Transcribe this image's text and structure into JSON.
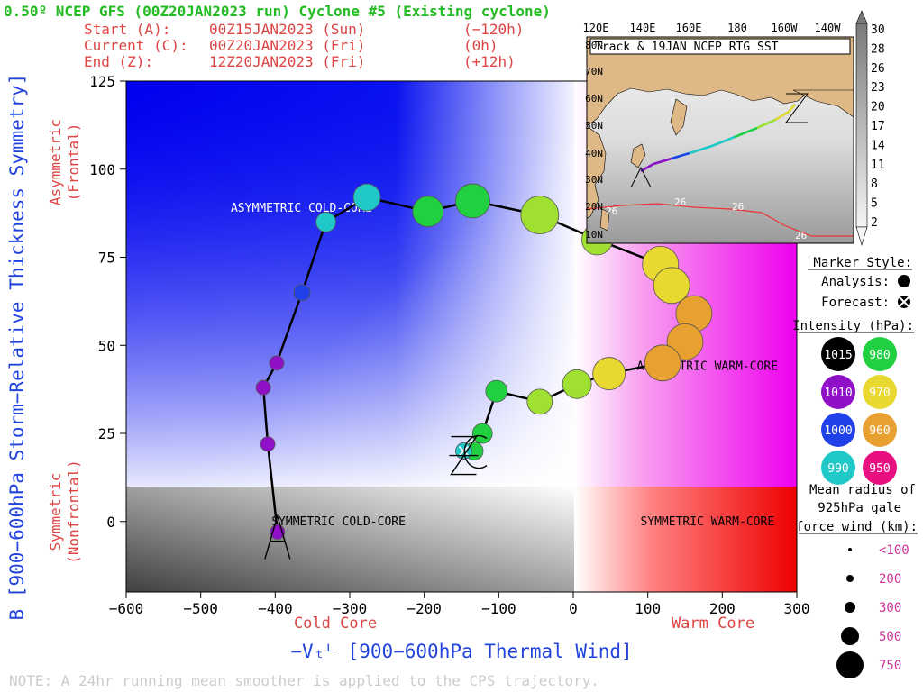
{
  "header": {
    "title": "0.50º NCEP GFS (00Z20JAN2023 run) Cyclone #5 (Existing cyclone)",
    "start_label": "Start (A):",
    "start_value": "00Z15JAN2023 (Sun)",
    "start_offset": "(−120h)",
    "current_label": "Current (C):",
    "current_value": "00Z20JAN2023 (Fri)",
    "current_offset": "(0h)",
    "end_label": "End (Z):",
    "end_value": "12Z20JAN2023 (Fri)",
    "end_offset": "(+12h)"
  },
  "note": "NOTE:  A 24hr running mean smoother is applied to the CPS trajectory.",
  "chart_data": {
    "type": "scatter",
    "title": "0.50º NCEP GFS (00Z20JAN2023 run) Cyclone #5 (Existing cyclone)",
    "xlabel": "−Vₜᴸ [900−600hPa Thermal Wind]",
    "ylabel": "B [900−600hPa Storm−Relative Thickness Symmetry]",
    "xlim": [
      -600,
      300
    ],
    "ylim": [
      -20,
      125
    ],
    "xticks": [
      -600,
      -500,
      -400,
      -300,
      -200,
      -100,
      0,
      100,
      200,
      300
    ],
    "yticks": [
      0,
      25,
      50,
      75,
      100,
      125
    ],
    "x_side_labels": {
      "left": "Cold Core",
      "right": "Warm Core"
    },
    "y_side_labels": {
      "top": "Asymmetric\n(Frontal)",
      "bottom": "Symmetric\n(Nonfrontal)"
    },
    "quadrant_labels": [
      {
        "text": "ASYMMETRIC COLD-CORE",
        "x": -365,
        "y": 89
      },
      {
        "text": "ASYMMETRIC WARM-CORE",
        "x": 180,
        "y": 44
      },
      {
        "text": "SYMMETRIC COLD-CORE",
        "x": -315,
        "y": 0
      },
      {
        "text": "SYMMETRIC WARM-CORE",
        "x": 180,
        "y": 0
      }
    ],
    "grid": false,
    "trajectory": [
      {
        "x": -397,
        "y": -3,
        "color": "#9010c8",
        "r": 8
      },
      {
        "x": -410,
        "y": 22,
        "color": "#9010c8",
        "r": 8
      },
      {
        "x": -416,
        "y": 38,
        "color": "#9010c8",
        "r": 8
      },
      {
        "x": -398,
        "y": 45,
        "color": "#9010c8",
        "r": 8
      },
      {
        "x": -364,
        "y": 65,
        "color": "#2040e8",
        "r": 9
      },
      {
        "x": -332,
        "y": 85,
        "color": "#20c8c8",
        "r": 11
      },
      {
        "x": -277,
        "y": 92,
        "color": "#20c8c8",
        "r": 15
      },
      {
        "x": -195,
        "y": 88,
        "color": "#20d040",
        "r": 17
      },
      {
        "x": -135,
        "y": 91,
        "color": "#20d040",
        "r": 19
      },
      {
        "x": -45,
        "y": 87,
        "color": "#a0e030",
        "r": 21
      },
      {
        "x": 32,
        "y": 80,
        "color": "#a0e030",
        "r": 17
      },
      {
        "x": 117,
        "y": 73,
        "color": "#e8d830",
        "r": 20
      },
      {
        "x": 132,
        "y": 67,
        "color": "#e8d830",
        "r": 20
      },
      {
        "x": 162,
        "y": 59,
        "color": "#e8a030",
        "r": 20
      },
      {
        "x": 150,
        "y": 51,
        "color": "#e8a030",
        "r": 20
      },
      {
        "x": 120,
        "y": 45,
        "color": "#e8a030",
        "r": 20
      },
      {
        "x": 48,
        "y": 42,
        "color": "#e8d830",
        "r": 18
      },
      {
        "x": 5,
        "y": 39,
        "color": "#a0e030",
        "r": 16
      },
      {
        "x": -45,
        "y": 34,
        "color": "#a0e030",
        "r": 14
      },
      {
        "x": -103,
        "y": 37,
        "color": "#20d040",
        "r": 12
      },
      {
        "x": -122,
        "y": 25,
        "color": "#20d040",
        "r": 11
      },
      {
        "x": -133,
        "y": 20,
        "color": "#20d040",
        "r": 10
      },
      {
        "x": -147,
        "y": 20,
        "color": "#20c8c8",
        "r": 9,
        "forecast": true
      }
    ],
    "markers": {
      "start_letter": "A",
      "current_letter": "C",
      "end_letter": "Z"
    }
  },
  "inset": {
    "title": "Track & 19JAN NCEP RTG SST",
    "lon_labels": [
      "120E",
      "140E",
      "160E",
      "180",
      "160W",
      "140W"
    ],
    "lat_labels": [
      "80N",
      "70N",
      "60N",
      "50N",
      "40N",
      "30N",
      "20N",
      "10N"
    ],
    "sst_labels": [
      "26",
      "26",
      "26",
      "26"
    ],
    "colorbar_values": [
      "30",
      "28",
      "26",
      "23",
      "20",
      "17",
      "14",
      "11",
      "8",
      "5",
      "2"
    ]
  },
  "legend": {
    "marker_style_title": "Marker Style:",
    "analysis_label": "Analysis:",
    "forecast_label": "Forecast:",
    "intensity_title": "Intensity (hPa):",
    "intensities": [
      {
        "value": "1015",
        "color": "#000000"
      },
      {
        "value": "980",
        "color": "#20d040"
      },
      {
        "value": "1010",
        "color": "#9010c8"
      },
      {
        "value": "970",
        "color": "#e8d830"
      },
      {
        "value": "1000",
        "color": "#2040e8"
      },
      {
        "value": "960",
        "color": "#e8a030"
      },
      {
        "value": "990",
        "color": "#20c8c8"
      },
      {
        "value": "950",
        "color": "#e81080"
      }
    ],
    "radius_title_1": "Mean radius of",
    "radius_title_2": "925hPa gale",
    "radius_title_3": "force wind (km):",
    "radii": [
      "<100",
      "200",
      "300",
      "500",
      "750"
    ]
  }
}
